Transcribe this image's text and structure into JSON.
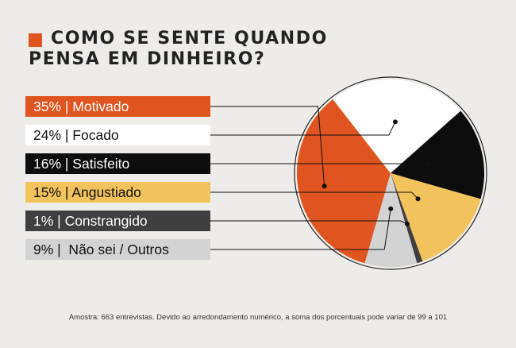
{
  "title": {
    "line1": "COMO SE SENTE QUANDO",
    "line2": "PENSA EM DINHEIRO?"
  },
  "chart_data": {
    "type": "pie",
    "title": "COMO SE SENTE QUANDO PENSA EM DINHEIRO?",
    "slices": [
      {
        "label": "35% | Motivado",
        "value": 35,
        "color": "#e0551f",
        "text_color": "#ffffff"
      },
      {
        "label": "24% | Focado",
        "value": 24,
        "color": "#ffffff",
        "text_color": "#111111"
      },
      {
        "label": "16% | Satisfeito",
        "value": 16,
        "color": "#0d0d0d",
        "text_color": "#ffffff"
      },
      {
        "label": "15% | Angustiado",
        "value": 15,
        "color": "#f2c25c",
        "text_color": "#111111"
      },
      {
        "label": "1% | Constrangido",
        "value": 1,
        "color": "#3f3f3f",
        "text_color": "#ffffff"
      },
      {
        "label": "9% |  Não sei / Outros",
        "value": 9,
        "color": "#d3d3d3",
        "text_color": "#111111"
      }
    ],
    "legend_placement": "left"
  },
  "footnote": "Amostra: 663 entrevistas. Devido ao arredondamento numérico, a soma dos porcentuais pode variar de 99 a 101"
}
